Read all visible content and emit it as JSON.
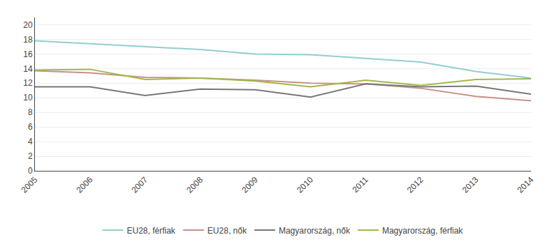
{
  "chart_data": {
    "type": "line",
    "x": [
      2005,
      2006,
      2007,
      2008,
      2009,
      2010,
      2011,
      2012,
      2013,
      2014
    ],
    "series": [
      {
        "name": "EU28, férfiak",
        "color": "#92cece",
        "values": [
          17.8,
          17.4,
          17.0,
          16.6,
          16.0,
          15.9,
          15.4,
          14.9,
          13.6,
          12.7
        ]
      },
      {
        "name": "EU28, nők",
        "color": "#c8908a",
        "values": [
          13.7,
          13.4,
          12.8,
          12.7,
          12.4,
          12.0,
          11.9,
          11.3,
          10.2,
          9.6
        ]
      },
      {
        "name": "Magyarország, nők",
        "color": "#777777",
        "values": [
          11.5,
          11.5,
          10.3,
          11.2,
          11.1,
          10.1,
          11.9,
          11.5,
          11.6,
          10.5
        ]
      },
      {
        "name": "Magyarország, férfiak",
        "color": "#a0b84a",
        "values": [
          13.8,
          13.9,
          12.5,
          12.7,
          12.3,
          11.5,
          12.4,
          11.7,
          12.5,
          12.6
        ]
      }
    ],
    "xlim": [
      2005,
      2014
    ],
    "xticks": [
      2005,
      2006,
      2007,
      2008,
      2009,
      2010,
      2011,
      2012,
      2013,
      2014
    ],
    "ylim": [
      0,
      21
    ],
    "yticks": [
      0,
      2,
      4,
      6,
      8,
      10,
      12,
      14,
      16,
      18,
      20
    ],
    "grid": "y",
    "legend": "bottom"
  }
}
